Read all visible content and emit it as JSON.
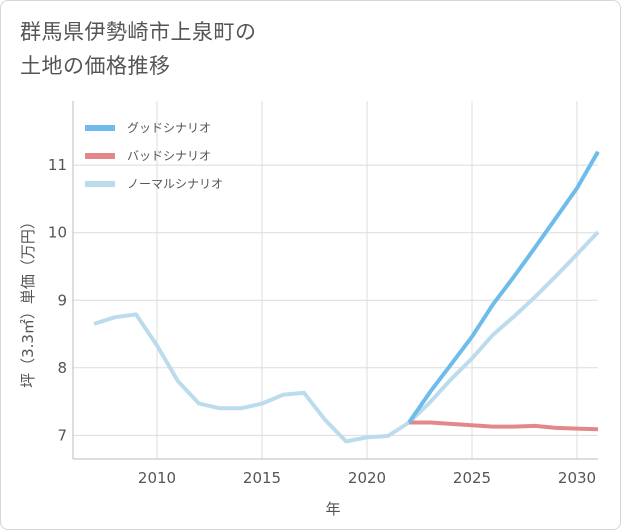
{
  "title_lines": [
    "群馬県伊勢崎市上泉町の",
    "土地の価格推移"
  ],
  "chart_data": {
    "type": "line",
    "xlabel": "年",
    "ylabel": "坪（3.3㎡）単価（万円）",
    "xlim": [
      2006,
      2031
    ],
    "ylim": [
      6.65,
      11.95
    ],
    "xticks": [
      2010,
      2015,
      2020,
      2025,
      2030
    ],
    "yticks": [
      7,
      8,
      9,
      10,
      11
    ],
    "grid": true,
    "legend_position": "top-left",
    "series": [
      {
        "name": "グッドシナリオ",
        "color": "#6dbcec",
        "x": [
          2022,
          2023,
          2024,
          2025,
          2026,
          2027,
          2028,
          2029,
          2030,
          2031
        ],
        "y": [
          7.19,
          7.64,
          8.05,
          8.46,
          8.94,
          9.35,
          9.78,
          10.22,
          10.66,
          11.2
        ]
      },
      {
        "name": "バッドシナリオ",
        "color": "#e3878b",
        "x": [
          2022,
          2023,
          2024,
          2025,
          2026,
          2027,
          2028,
          2029,
          2030,
          2031
        ],
        "y": [
          7.19,
          7.19,
          7.17,
          7.15,
          7.13,
          7.13,
          7.14,
          7.11,
          7.1,
          7.09
        ]
      },
      {
        "name": "ノーマルシナリオ",
        "color": "#bcdcee",
        "x": [
          2007,
          2008,
          2009,
          2010,
          2011,
          2012,
          2013,
          2014,
          2015,
          2016,
          2017,
          2018,
          2019,
          2020,
          2021,
          2022,
          2023,
          2024,
          2025,
          2026,
          2027,
          2028,
          2029,
          2030,
          2031
        ],
        "y": [
          8.65,
          8.75,
          8.79,
          8.33,
          7.8,
          7.47,
          7.4,
          7.4,
          7.47,
          7.6,
          7.63,
          7.23,
          6.91,
          6.97,
          6.99,
          7.19,
          7.49,
          7.83,
          8.14,
          8.49,
          8.76,
          9.05,
          9.36,
          9.68,
          10.01
        ]
      }
    ]
  }
}
